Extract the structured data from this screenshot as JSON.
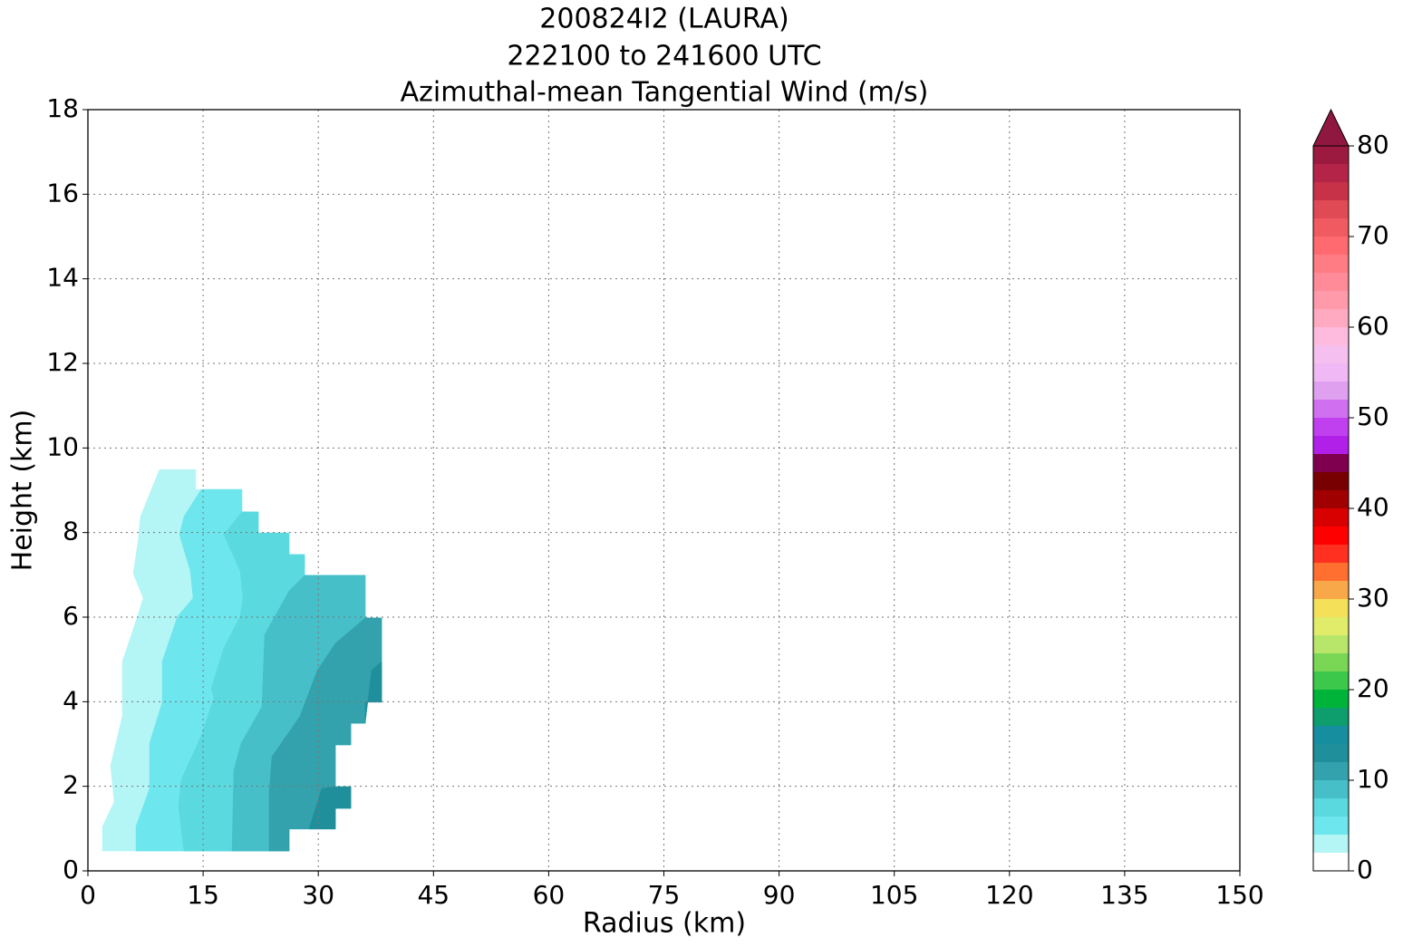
{
  "chart_data": {
    "type": "contourf",
    "title": [
      "200824I2 (LAURA)",
      "222100 to 241600 UTC",
      "Azimuthal-mean Tangential Wind (m/s)"
    ],
    "x_label": "Radius (km)",
    "y_label": "Height (km)",
    "xlim": [
      0,
      150
    ],
    "xticks": [
      0,
      15,
      30,
      45,
      60,
      75,
      90,
      105,
      120,
      135,
      150
    ],
    "ylim": [
      0,
      18
    ],
    "yticks": [
      0,
      2,
      4,
      6,
      8,
      10,
      12,
      14,
      16,
      18
    ],
    "grid": true,
    "levels": [
      0,
      2,
      4,
      6,
      8,
      10,
      12,
      14,
      16,
      18,
      20,
      22,
      24,
      26,
      28,
      30,
      32,
      34,
      36,
      38,
      40,
      42,
      44,
      46,
      48,
      50,
      52,
      54,
      56,
      58,
      60,
      62,
      64,
      66,
      68,
      70,
      72,
      74,
      76,
      78,
      80
    ],
    "colors": [
      "#ffffff",
      "#b4f5f5",
      "#6ee6ee",
      "#5ad9df",
      "#46bfc9",
      "#33a2ac",
      "#1f8f9c",
      "#178ea0",
      "#0e9e6e",
      "#00b43a",
      "#3cc84a",
      "#7ad655",
      "#b8e66a",
      "#e0ec6a",
      "#f5e05a",
      "#f8a848",
      "#ff7030",
      "#ff3020",
      "#ff0000",
      "#d80000",
      "#a00000",
      "#780000",
      "#800050",
      "#b020e8",
      "#c040f0",
      "#d070f0",
      "#e0a0f0",
      "#f0b8f5",
      "#f5c0f0",
      "#ffbbdd",
      "#ffaac0",
      "#ff9aaa",
      "#ff8a98",
      "#ff7c84",
      "#ff6a70",
      "#f05a60",
      "#e04a55",
      "#c83248",
      "#b42448",
      "#9c1a40"
    ],
    "extend_color": "#901840",
    "colorbar_ticks": [
      0,
      10,
      20,
      30,
      40,
      50,
      60,
      70,
      80
    ],
    "regions": [
      {
        "level": 2,
        "x": [
          1.89,
          1.89,
          3.42,
          2.95,
          4.48,
          4.48,
          6.26,
          7.2,
          5.9,
          6.49,
          6.85,
          9.32,
          14.04,
          14.04,
          20.06,
          20.06,
          22.19,
          22.19,
          26.2,
          26.2,
          28.21,
          28.21,
          36.11,
          36.11,
          38.24,
          38.24,
          36.11,
          36.11,
          34.23,
          34.23,
          32.22,
          32.22,
          34.23,
          34.23,
          32.22,
          32.22,
          26.2,
          26.2
        ],
        "y": [
          0.47,
          1.05,
          1.63,
          2.49,
          3.66,
          4.95,
          5.91,
          6.45,
          7.03,
          7.74,
          8.38,
          9.49,
          9.49,
          9.02,
          9.02,
          8.49,
          8.49,
          7.99,
          7.99,
          7.48,
          7.48,
          6.99,
          6.99,
          5.98,
          5.98,
          3.99,
          3.99,
          3.49,
          3.49,
          2.98,
          2.98,
          1.99,
          1.99,
          1.48,
          1.48,
          0.99,
          0.99,
          0.47
        ]
      },
      {
        "level": 4,
        "x": [
          6.26,
          6.26,
          8.03,
          8.03,
          9.68,
          9.68,
          11.68,
          13.69,
          13.34,
          11.92,
          12.51,
          14.75,
          20.06,
          20.06,
          22.19,
          22.19,
          26.2,
          26.2,
          28.21,
          28.21,
          36.11,
          36.11,
          38.24,
          38.24,
          36.11,
          36.11,
          34.23,
          34.23,
          32.22,
          32.22,
          34.23,
          34.23,
          32.22,
          32.22,
          26.2,
          26.2
        ],
        "y": [
          0.47,
          1.05,
          1.95,
          3.02,
          3.99,
          4.95,
          6.02,
          6.45,
          7.09,
          7.95,
          8.38,
          9.02,
          9.02,
          8.49,
          8.49,
          7.99,
          7.99,
          7.48,
          7.48,
          6.99,
          6.99,
          5.98,
          5.98,
          3.99,
          3.99,
          3.49,
          3.49,
          2.98,
          2.98,
          1.99,
          1.99,
          1.48,
          1.48,
          0.99,
          0.99,
          0.47
        ]
      },
      {
        "level": 6,
        "x": [
          12.51,
          11.8,
          12.16,
          14.75,
          16.41,
          16.05,
          17.7,
          19.83,
          20.18,
          19.83,
          17.7,
          20.06,
          22.19,
          22.19,
          26.2,
          26.2,
          28.21,
          28.21,
          36.11,
          36.11,
          38.24,
          38.24,
          36.11,
          36.11,
          34.23,
          34.23,
          32.22,
          32.22,
          34.23,
          34.23,
          32.22,
          32.22,
          26.2,
          26.2
        ],
        "y": [
          0.47,
          1.52,
          2.16,
          3.19,
          4.09,
          4.31,
          5.27,
          6.02,
          6.45,
          7.09,
          7.95,
          8.49,
          8.49,
          7.99,
          7.99,
          7.48,
          7.48,
          6.99,
          6.99,
          5.98,
          5.98,
          3.99,
          3.99,
          3.49,
          3.49,
          2.98,
          2.98,
          1.99,
          1.99,
          1.48,
          1.48,
          0.99,
          0.99,
          0.47
        ]
      },
      {
        "level": 8,
        "x": [
          18.77,
          19.0,
          19.95,
          22.66,
          23.02,
          26.2,
          28.21,
          36.11,
          36.11,
          38.24,
          38.24,
          36.11,
          36.11,
          34.23,
          34.23,
          32.22,
          32.22,
          34.23,
          34.23,
          32.22,
          32.22,
          26.2,
          26.2
        ],
        "y": [
          0.47,
          2.38,
          3.02,
          3.88,
          5.59,
          6.62,
          6.99,
          6.99,
          5.98,
          5.98,
          3.99,
          3.99,
          3.49,
          3.49,
          2.98,
          2.98,
          1.99,
          1.99,
          1.48,
          1.48,
          0.99,
          0.99,
          0.47
        ]
      },
      {
        "level": 10,
        "x": [
          23.6,
          23.6,
          23.96,
          27.62,
          29.86,
          32.22,
          36.11,
          38.24,
          38.24,
          36.11,
          36.11,
          34.23,
          34.23,
          32.22,
          32.22,
          34.23,
          34.23,
          32.22,
          32.22,
          26.2,
          26.2
        ],
        "y": [
          0.47,
          1.84,
          2.7,
          3.66,
          4.74,
          5.38,
          5.98,
          5.98,
          3.99,
          3.99,
          3.49,
          3.49,
          2.98,
          2.98,
          1.99,
          1.99,
          1.48,
          1.48,
          0.99,
          0.99,
          0.47
        ]
      },
      {
        "level": 12,
        "x": [
          28.8,
          30.45,
          32.22,
          34.23,
          34.23,
          32.22,
          32.22
        ],
        "y": [
          0.99,
          1.95,
          1.99,
          1.99,
          1.48,
          1.48,
          0.99
        ]
      },
      {
        "level": 12,
        "x": [
          36.94,
          38.24,
          38.24,
          36.11,
          36.11
        ],
        "y": [
          4.74,
          4.95,
          3.99,
          3.99,
          3.49
        ]
      }
    ]
  }
}
